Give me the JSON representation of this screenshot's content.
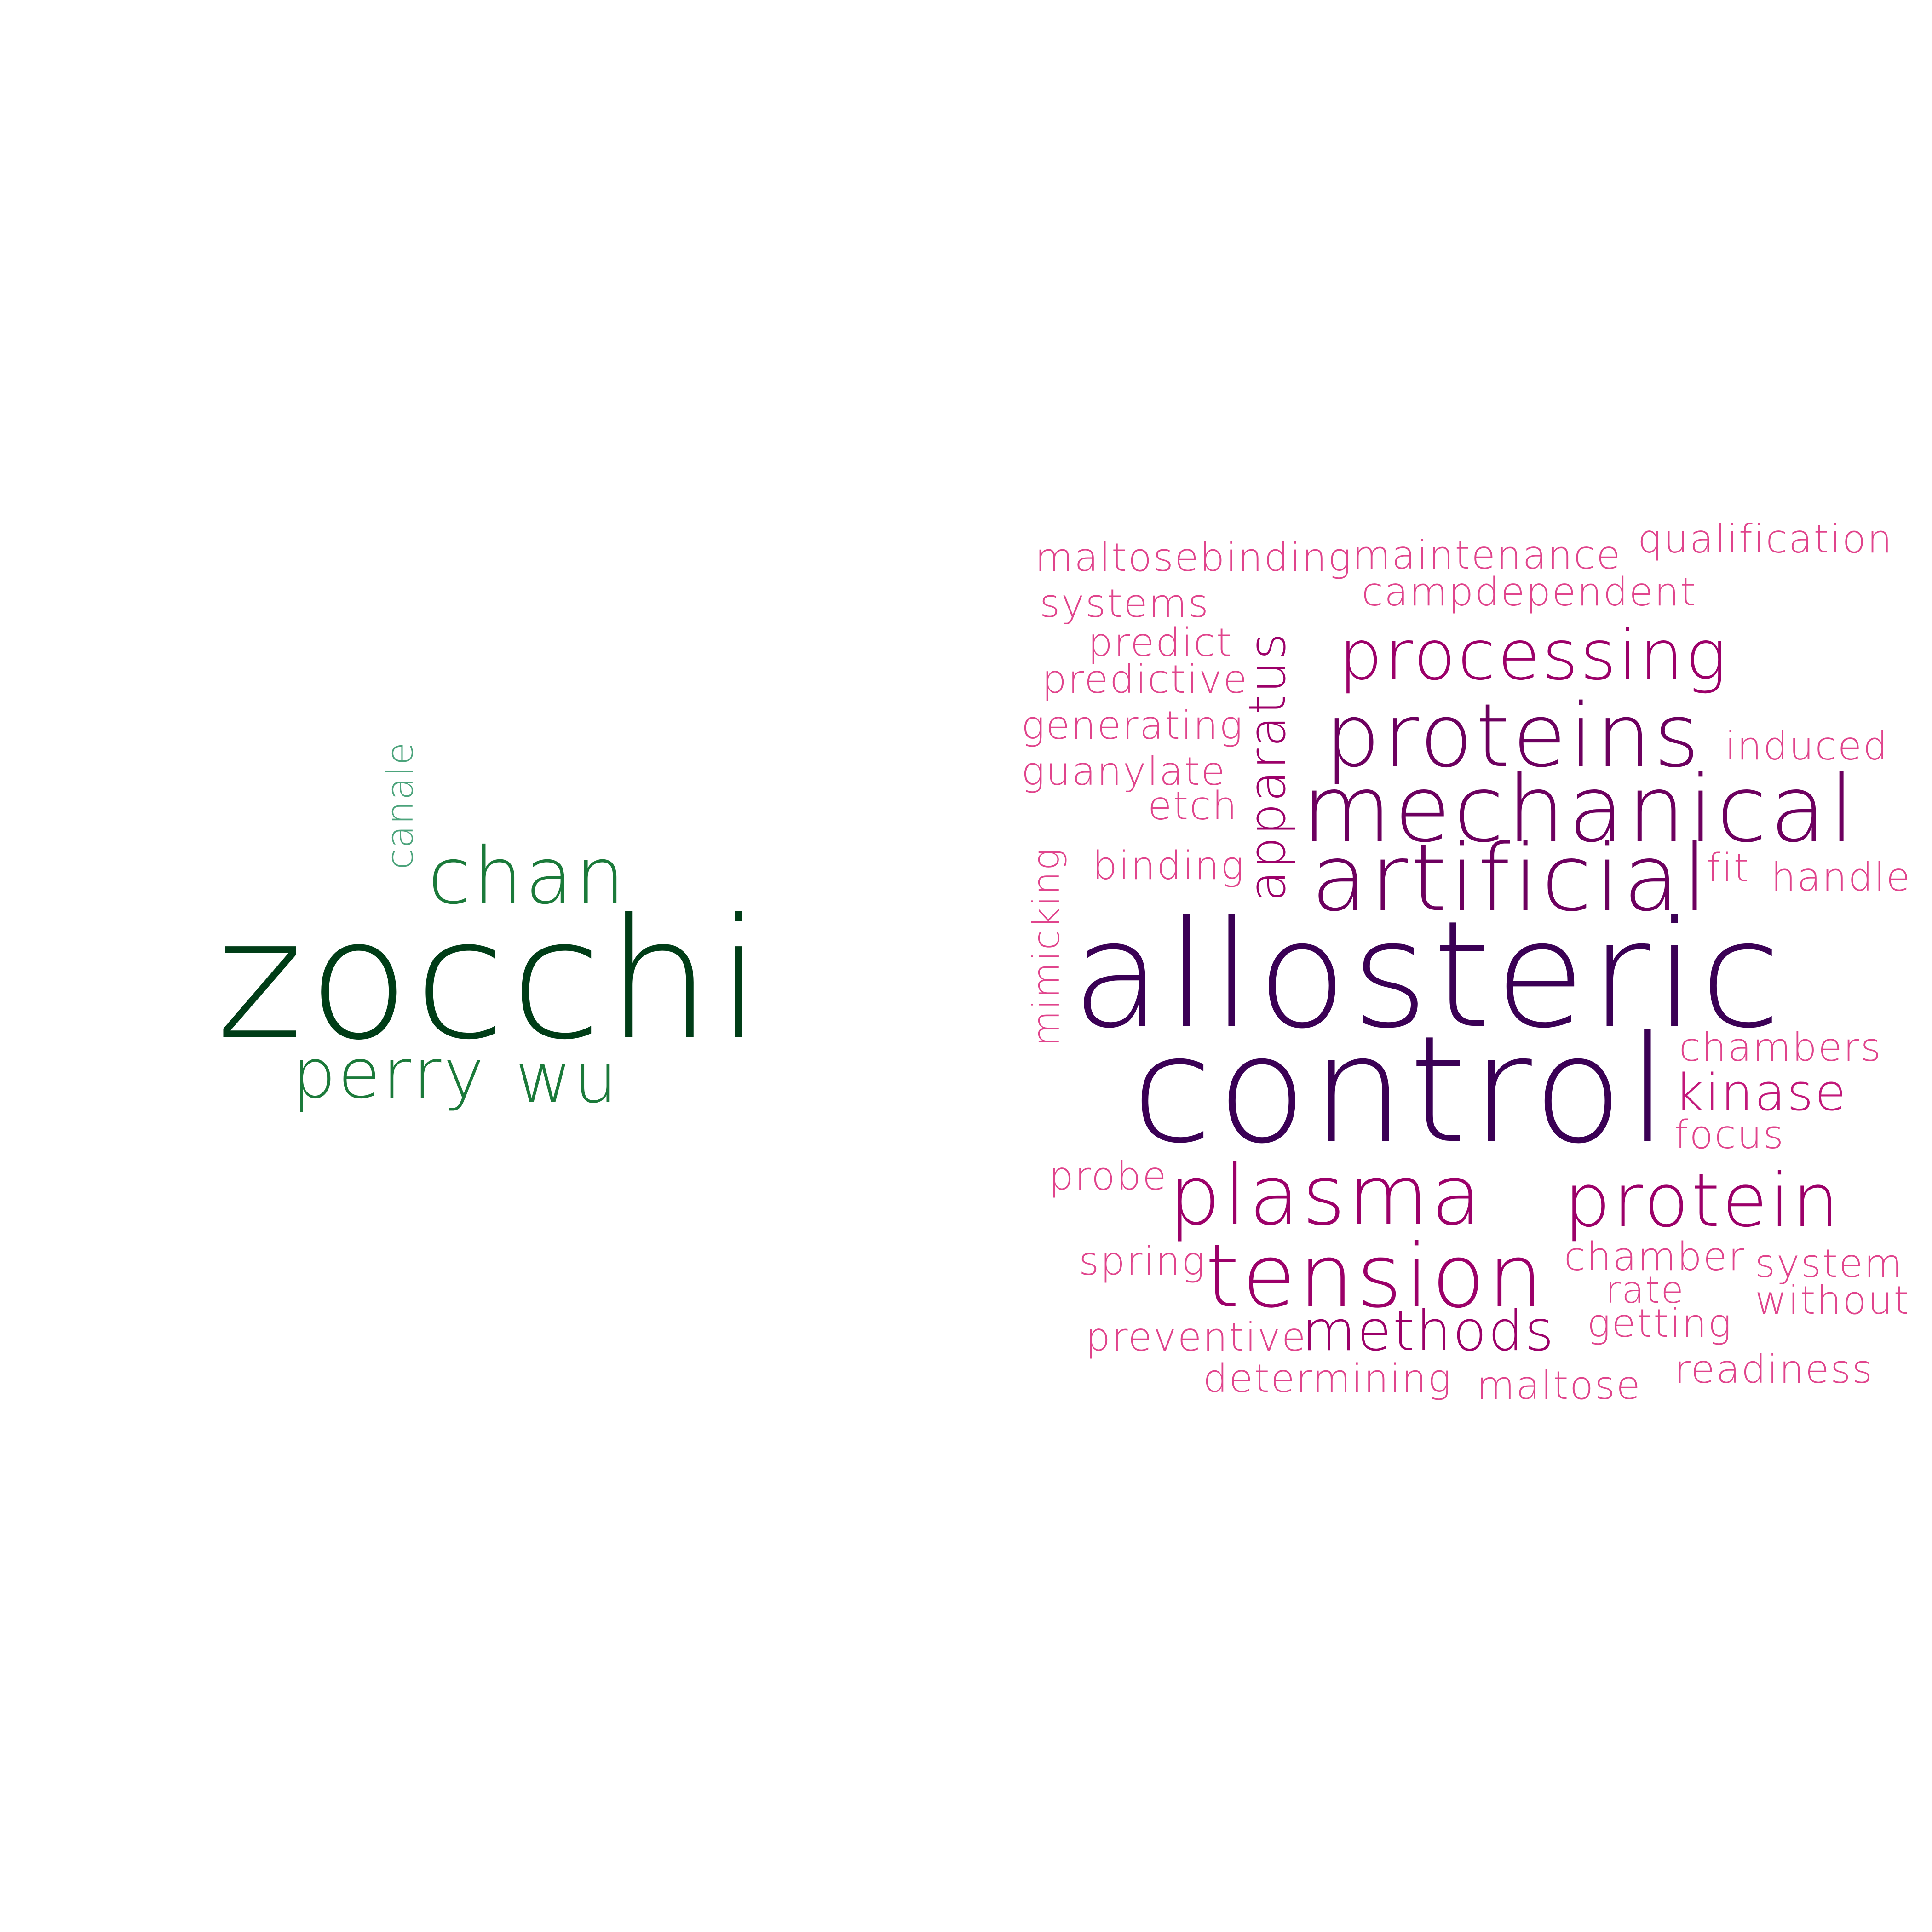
{
  "colors": {
    "background": "#ffffff",
    "green_dark": "#003d17",
    "green_mid": "#1b7a3a",
    "green_light": "#4ba37b",
    "purple_dark": "#3b0055",
    "purple_mid": "#6d005f",
    "magenta": "#9c0069",
    "magenta_light": "#c2187a",
    "pink": "#e0448c",
    "pink_light": "#ec6aa0"
  },
  "left_cloud": {
    "words": [
      {
        "text": "zocchi",
        "color": "#003d17"
      },
      {
        "text": "chan",
        "color": "#1b7a3a"
      },
      {
        "text": "perry",
        "color": "#1b7a3a"
      },
      {
        "text": "wu",
        "color": "#1b7a3a"
      },
      {
        "text": "canale",
        "color": "#4ba37b"
      }
    ]
  },
  "right_cloud": {
    "words": [
      {
        "text": "allosteric",
        "color": "#3b0055"
      },
      {
        "text": "control",
        "color": "#3b0055"
      },
      {
        "text": "mechanical",
        "color": "#6d005f"
      },
      {
        "text": "artificial",
        "color": "#6d005f"
      },
      {
        "text": "proteins",
        "color": "#6d005f"
      },
      {
        "text": "processing",
        "color": "#9c0069"
      },
      {
        "text": "plasma",
        "color": "#9c0069"
      },
      {
        "text": "protein",
        "color": "#9c0069"
      },
      {
        "text": "tension",
        "color": "#9c0069"
      },
      {
        "text": "methods",
        "color": "#9c0069"
      },
      {
        "text": "apparatus",
        "color": "#9c0069"
      },
      {
        "text": "kinase",
        "color": "#c2187a"
      },
      {
        "text": "maltosebinding",
        "color": "#e0448c"
      },
      {
        "text": "maintenance",
        "color": "#e0448c"
      },
      {
        "text": "qualification",
        "color": "#e0448c"
      },
      {
        "text": "campdependent",
        "color": "#e0448c"
      },
      {
        "text": "systems",
        "color": "#e0448c"
      },
      {
        "text": "predict",
        "color": "#e0448c"
      },
      {
        "text": "predictive",
        "color": "#e0448c"
      },
      {
        "text": "generating",
        "color": "#e0448c"
      },
      {
        "text": "guanylate",
        "color": "#e0448c"
      },
      {
        "text": "etch",
        "color": "#e0448c"
      },
      {
        "text": "induced",
        "color": "#e0448c"
      },
      {
        "text": "binding",
        "color": "#e0448c"
      },
      {
        "text": "fit",
        "color": "#e0448c"
      },
      {
        "text": "handle",
        "color": "#e0448c"
      },
      {
        "text": "mimicking",
        "color": "#e0448c"
      },
      {
        "text": "chambers",
        "color": "#e0448c"
      },
      {
        "text": "focus",
        "color": "#e0448c"
      },
      {
        "text": "probe",
        "color": "#e0448c"
      },
      {
        "text": "spring",
        "color": "#e0448c"
      },
      {
        "text": "chamber",
        "color": "#e0448c"
      },
      {
        "text": "system",
        "color": "#e0448c"
      },
      {
        "text": "rate",
        "color": "#e0448c"
      },
      {
        "text": "without",
        "color": "#e0448c"
      },
      {
        "text": "getting",
        "color": "#e0448c"
      },
      {
        "text": "preventive",
        "color": "#e0448c"
      },
      {
        "text": "readiness",
        "color": "#e0448c"
      },
      {
        "text": "determining",
        "color": "#e0448c"
      },
      {
        "text": "maltose",
        "color": "#e0448c"
      }
    ]
  }
}
